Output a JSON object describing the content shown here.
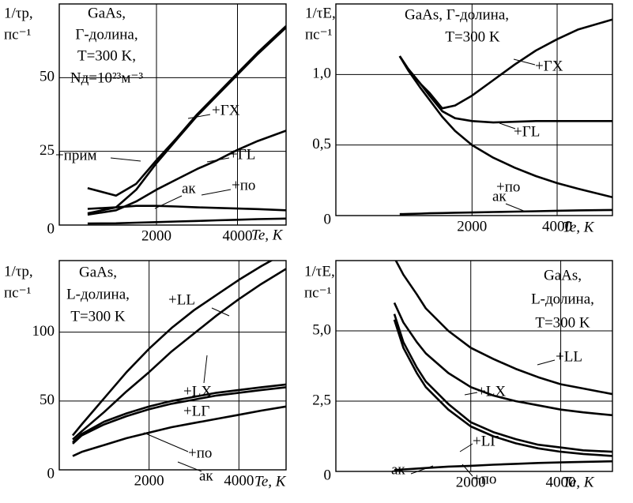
{
  "chart_data": [
    {
      "type": "line",
      "ylabel": [
        "1/τp,",
        "пс⁻¹"
      ],
      "xlabel": "Te, K",
      "annotations": [
        "GaAs,",
        "Г-долина,",
        "T=300 K,",
        "Nд=10²³м⁻³"
      ],
      "x": [
        300,
        1000,
        1500,
        2000,
        2500,
        3000,
        3500,
        4000,
        4500,
        5200
      ],
      "xlim": [
        -400,
        5200
      ],
      "xticks": [
        2000,
        4000
      ],
      "ylim": [
        0,
        75
      ],
      "yticks": [
        0,
        25,
        50
      ],
      "grid": true,
      "series": [
        {
          "name": "+ГХ",
          "color": "#000000",
          "values": [
            4,
            6,
            12,
            21,
            29,
            37,
            44,
            51,
            58,
            67
          ]
        },
        {
          "name": "+прим",
          "color": "#000000",
          "values": [
            12.5,
            10,
            14,
            22,
            29.5,
            37.5,
            44.5,
            51.5,
            58.5,
            67.5
          ]
        },
        {
          "name": "+ГL",
          "color": "#000000",
          "values": [
            3.5,
            5,
            8,
            12,
            15.5,
            19,
            22,
            25.5,
            28.5,
            32
          ]
        },
        {
          "name": "+по",
          "color": "#000000",
          "values": [
            5.5,
            6,
            6.5,
            6.5,
            6.3,
            6,
            5.8,
            5.6,
            5.4,
            5
          ]
        },
        {
          "name": "ак",
          "color": "#000000",
          "values": [
            0.5,
            0.6,
            0.8,
            1,
            1.2,
            1.4,
            1.6,
            1.8,
            2,
            2.2
          ]
        }
      ]
    },
    {
      "type": "line",
      "ylabel": [
        "1/τE,",
        "пс⁻¹"
      ],
      "xlabel": "Te, K",
      "annotations": [
        "GaAs,  Г-долина,",
        "T=300 K"
      ],
      "x": [
        300,
        500,
        800,
        1000,
        1300,
        1600,
        2000,
        2500,
        3000,
        3500,
        4000,
        4500,
        5300
      ],
      "xlim": [
        -1200,
        5300
      ],
      "xticks": [
        2000,
        4000
      ],
      "ylim": [
        0,
        1.5
      ],
      "yticks": [
        0,
        {
          "value": 0.5,
          "label": "0,5"
        },
        {
          "value": 1,
          "label": "1,0"
        }
      ],
      "grid": true,
      "series": [
        {
          "name": "+ГХ",
          "color": "#000000",
          "values": [
            1.13,
            1.04,
            0.93,
            0.87,
            0.76,
            0.78,
            0.85,
            0.96,
            1.07,
            1.17,
            1.25,
            1.32,
            1.39
          ]
        },
        {
          "name": "+ГL",
          "color": "#000000",
          "values": [
            1.13,
            1.04,
            0.93,
            0.85,
            0.74,
            0.69,
            0.67,
            0.66,
            0.665,
            0.67,
            0.67,
            0.67,
            0.67
          ]
        },
        {
          "name": "+по",
          "color": "#000000",
          "values": [
            1.13,
            1.03,
            0.9,
            0.82,
            0.7,
            0.6,
            0.5,
            0.41,
            0.34,
            0.28,
            0.23,
            0.19,
            0.13
          ]
        },
        {
          "name": "ак",
          "color": "#000000",
          "values": [
            0.01,
            0.012,
            0.014,
            0.016,
            0.018,
            0.02,
            0.022,
            0.025,
            0.028,
            0.031,
            0.034,
            0.037,
            0.04
          ]
        }
      ]
    },
    {
      "type": "line",
      "ylabel": [
        "1/τp,",
        "пс⁻¹"
      ],
      "xlabel": "Te, K",
      "annotations": [
        "GaAs,",
        "L-долина,",
        "T=300 K"
      ],
      "x": [
        300,
        500,
        1000,
        1500,
        2000,
        2500,
        3000,
        3500,
        4000,
        4500,
        5050
      ],
      "xlim": [
        0,
        5050
      ],
      "xticks": [
        2000,
        4000
      ],
      "ylim": [
        0,
        152
      ],
      "yticks": [
        0,
        50,
        100
      ],
      "grid": true,
      "series": [
        {
          "name": "+LL",
          "color": "#000000",
          "values": [
            25,
            33,
            52,
            71,
            88,
            103,
            116,
            127,
            138,
            148,
            158
          ]
        },
        {
          "name": "+LX",
          "color": "#000000",
          "values": [
            22,
            28,
            42,
            57,
            71,
            86,
            99,
            112,
            124,
            135,
            146
          ]
        },
        {
          "name": "+LГ",
          "color": "#000000",
          "values": [
            20,
            26,
            35,
            41,
            46,
            50,
            53,
            56,
            58,
            60,
            62
          ]
        },
        {
          "name": "+по",
          "color": "#000000",
          "values": [
            19,
            25,
            33,
            39,
            44,
            48,
            51,
            54,
            56,
            58,
            60
          ]
        },
        {
          "name": "ак",
          "color": "#000000",
          "values": [
            10,
            13,
            18,
            23,
            27,
            31,
            34,
            37,
            40,
            43,
            46
          ]
        }
      ]
    },
    {
      "type": "line",
      "ylabel": [
        "1/τE,",
        "пс⁻¹"
      ],
      "xlabel": "Te, K",
      "annotations": [
        "GaAs,",
        "L-долина,",
        "T=300 K"
      ],
      "x": [
        300,
        500,
        800,
        1000,
        1500,
        2000,
        2500,
        3000,
        3500,
        4000,
        4500,
        5150
      ],
      "xlim": [
        -1000,
        5150
      ],
      "xticks": [
        2000,
        4000
      ],
      "ylim": [
        0,
        7.5
      ],
      "yticks": [
        0,
        {
          "value": 2.5,
          "label": "2,5"
        },
        {
          "value": 5,
          "label": "5,0"
        }
      ],
      "grid": true,
      "series": [
        {
          "name": "+LL",
          "color": "#000000",
          "values": [
            7.6,
            7.0,
            6.3,
            5.8,
            5.0,
            4.4,
            4.0,
            3.65,
            3.35,
            3.1,
            2.95,
            2.75
          ]
        },
        {
          "name": "+LX",
          "color": "#000000",
          "values": [
            6.0,
            5.3,
            4.6,
            4.2,
            3.5,
            3.0,
            2.7,
            2.5,
            2.35,
            2.2,
            2.1,
            2.0
          ]
        },
        {
          "name": "+LГ",
          "color": "#000000",
          "values": [
            5.6,
            4.6,
            3.7,
            3.2,
            2.4,
            1.75,
            1.4,
            1.15,
            0.95,
            0.85,
            0.75,
            0.7
          ]
        },
        {
          "name": "+по",
          "color": "#000000",
          "values": [
            5.4,
            4.4,
            3.5,
            3.0,
            2.2,
            1.6,
            1.25,
            1.0,
            0.82,
            0.7,
            0.62,
            0.55
          ]
        },
        {
          "name": "ак",
          "color": "#000000",
          "values": [
            0.05,
            0.07,
            0.1,
            0.12,
            0.17,
            0.2,
            0.24,
            0.27,
            0.3,
            0.32,
            0.34,
            0.36
          ]
        }
      ]
    }
  ]
}
